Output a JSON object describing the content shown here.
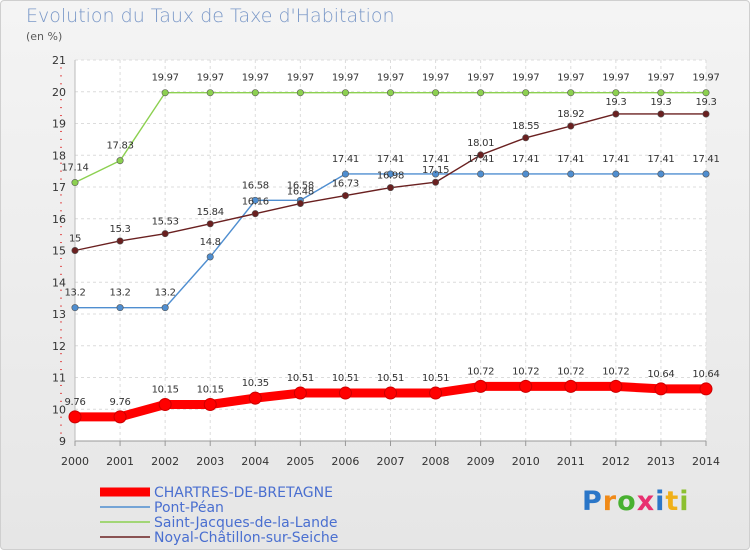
{
  "title": "Evolution du Taux de Taxe d'Habitation",
  "unit_label": "(en %)",
  "logo": [
    "P",
    "r",
    "o",
    "x",
    "i",
    "t",
    "i"
  ],
  "chart_data": {
    "type": "line",
    "title": "Evolution du Taux de Taxe d'Habitation",
    "ylabel": "(en %)",
    "xlabel": "",
    "ylim": [
      9,
      21
    ],
    "yticks": [
      9,
      10,
      11,
      12,
      13,
      14,
      15,
      16,
      17,
      18,
      19,
      20,
      21
    ],
    "x": [
      "2000",
      "2001",
      "2002",
      "2003",
      "2004",
      "2005",
      "2006",
      "2007",
      "2008",
      "2009",
      "2010",
      "2011",
      "2012",
      "2013",
      "2014"
    ],
    "grid": true,
    "legend": "bottom-left",
    "series": [
      {
        "name": "CHARTRES-DE-BRETAGNE",
        "color": "#ff0000",
        "values": [
          9.76,
          9.76,
          10.15,
          10.15,
          10.35,
          10.51,
          10.51,
          10.51,
          10.51,
          10.72,
          10.72,
          10.72,
          10.72,
          10.64,
          10.64
        ],
        "labels": [
          "9.76",
          "9.76",
          "10.15",
          "10.15",
          "10.35",
          "10.51",
          "10.51",
          "10.51",
          "10.51",
          "10.72",
          "10.72",
          "10.72",
          "10.72",
          "10.64",
          "10.64"
        ]
      },
      {
        "name": "Pont-Péan",
        "color": "#4f8ed0",
        "values": [
          13.2,
          13.2,
          13.2,
          14.8,
          16.58,
          16.58,
          17.41,
          17.41,
          17.41,
          17.41,
          17.41,
          17.41,
          17.41,
          17.41,
          17.41
        ],
        "labels": [
          "13.2",
          "13.2",
          "13.2",
          "14.8",
          "16.58",
          "16.58",
          "17.41",
          "17.41",
          "17.41",
          "17.41",
          "17.41",
          "17.41",
          "17.41",
          "17.41",
          "17.41"
        ]
      },
      {
        "name": "Saint-Jacques-de-la-Lande",
        "color": "#8cd050",
        "values": [
          17.14,
          17.83,
          19.97,
          19.97,
          19.97,
          19.97,
          19.97,
          19.97,
          19.97,
          19.97,
          19.97,
          19.97,
          19.97,
          19.97,
          19.97
        ],
        "labels": [
          "17.14",
          "17.83",
          "19.97",
          "19.97",
          "19.97",
          "19.97",
          "19.97",
          "19.97",
          "19.97",
          "19.97",
          "19.97",
          "19.97",
          "19.97",
          "19.97",
          "19.97"
        ]
      },
      {
        "name": "Noyal-Châtillon-sur-Seiche",
        "color": "#6a2020",
        "values": [
          15.0,
          15.3,
          15.53,
          15.84,
          16.16,
          16.48,
          16.73,
          16.98,
          17.15,
          18.01,
          18.55,
          18.92,
          19.3,
          19.3,
          19.3
        ],
        "labels": [
          "15",
          "15.3",
          "15.53",
          "15.84",
          "16.16",
          "16.48",
          "16.73",
          "16.98",
          "17.15",
          "18.01",
          "18.55",
          "18.92",
          "19.3",
          "19.3",
          "19.3"
        ]
      }
    ]
  }
}
